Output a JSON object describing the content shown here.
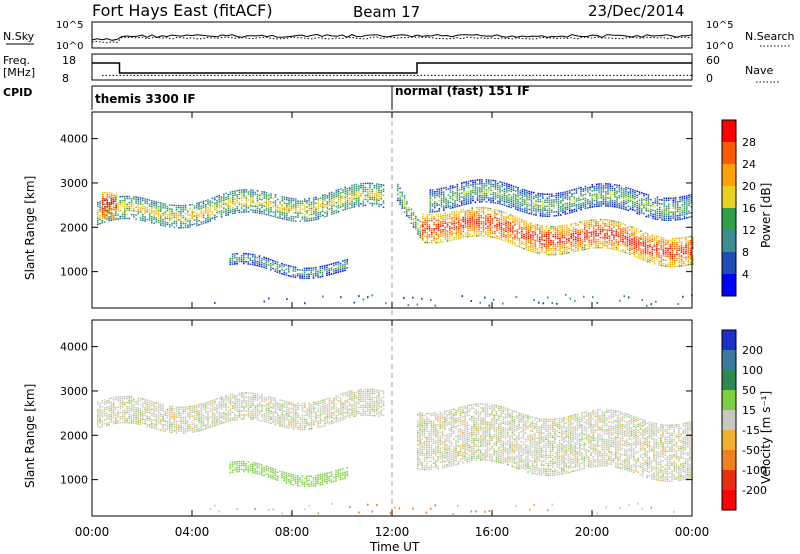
{
  "header": {
    "title": "Fort Hays East (fitACF)",
    "beam": "Beam 17",
    "date": "23/Dec/2014"
  },
  "top_panels": {
    "nsky_label": "N.Sky",
    "nsearch_label": "N.Search",
    "noise_ticks": [
      "10^5",
      "10^0"
    ],
    "freq_label_1": "Freq.",
    "freq_label_2": "[MHz]",
    "freq_ticks": [
      "18",
      "8"
    ],
    "nave_label": "Nave",
    "nave_ticks": [
      "60",
      "0"
    ],
    "cpid_label": "CPID",
    "cpid_segments": [
      {
        "name": "themis 3300 IF",
        "start_hour": 0,
        "end_hour": 12
      },
      {
        "name": "normal (fast) 151 IF",
        "start_hour": 12,
        "end_hour": 24
      }
    ]
  },
  "panels": {
    "ylabel": "Slant Range [km]",
    "yticks": [
      "4000",
      "3000",
      "2000",
      "1000"
    ],
    "xticks": [
      "00:00",
      "04:00",
      "08:00",
      "12:00",
      "16:00",
      "20:00",
      "00:00"
    ],
    "xlabel": "Time UT"
  },
  "colorbars": {
    "power": {
      "label": "Power [dB]",
      "ticks": [
        "28",
        "24",
        "20",
        "16",
        "12",
        "8",
        "4"
      ],
      "colors": [
        "#ff0000",
        "#ff5a00",
        "#ffa200",
        "#e8d21c",
        "#2ea04a",
        "#3a9090",
        "#1e4eb4",
        "#0000ff"
      ]
    },
    "velocity": {
      "label": "Velocity [m s⁻¹]",
      "ticks": [
        "200",
        "100",
        "50",
        "15",
        "-15",
        "-50",
        "-100",
        "-200"
      ],
      "colors": [
        "#1a30c8",
        "#3a7aa0",
        "#2c8a50",
        "#7ad040",
        "#c8c8c0",
        "#f0b030",
        "#f08020",
        "#e83010",
        "#ff0000"
      ]
    }
  },
  "chart_data": {
    "type": "heatmap",
    "x_axis": {
      "label": "Time UT",
      "range_hours": [
        0,
        24
      ]
    },
    "y_axis": {
      "label": "Slant Range [km]",
      "range_km": [
        180,
        4600
      ]
    },
    "frequency_mhz": [
      {
        "start_hour": 0,
        "end_hour": 1.1,
        "value": 15
      },
      {
        "start_hour": 1.1,
        "end_hour": 13,
        "value": 10
      },
      {
        "start_hour": 13,
        "end_hour": 24,
        "value": 15
      }
    ],
    "nave_level": 10,
    "power_features": [
      {
        "label": "themis band",
        "t0": 0.2,
        "t1": 11.7,
        "r_start": 2250,
        "r_end": 2600,
        "width_km": 500,
        "db": 14
      },
      {
        "label": "lower themis band",
        "t0": 5.5,
        "t1": 10.2,
        "r_start": 1150,
        "r_end": 1050,
        "width_km": 250,
        "db": 8
      },
      {
        "label": "near range echoes",
        "t0": 0.4,
        "t1": 1.0,
        "r_start": 2400,
        "r_end": 2300,
        "width_km": 600,
        "db": 26
      },
      {
        "label": "post-12 onset",
        "t0": 12.2,
        "t1": 13.2,
        "r_start": 2800,
        "r_end": 2000,
        "width_km": 400,
        "db": 12
      },
      {
        "label": "strong scatter band",
        "t0": 13.2,
        "t1": 24,
        "r_start": 2100,
        "r_end": 1500,
        "width_km": 650,
        "db": 24
      },
      {
        "label": "upper scatter band",
        "t0": 13.5,
        "t1": 24,
        "r_start": 2700,
        "r_end": 2500,
        "width_km": 500,
        "db": 10
      }
    ],
    "velocity_features": [
      {
        "label": "low velocity band",
        "t0": 0.2,
        "t1": 11.7,
        "r_start": 2400,
        "r_end": 2600,
        "width_km": 600,
        "v_ms": 0
      },
      {
        "label": "positive velocity band",
        "t0": 5.5,
        "t1": 10.2,
        "r_start": 1150,
        "r_end": 1050,
        "width_km": 250,
        "v_ms": 30
      },
      {
        "label": "low velocity post-12",
        "t0": 13.0,
        "t1": 24,
        "r_start": 2000,
        "r_end": 1700,
        "width_km": 1300,
        "v_ms": 0
      }
    ]
  }
}
